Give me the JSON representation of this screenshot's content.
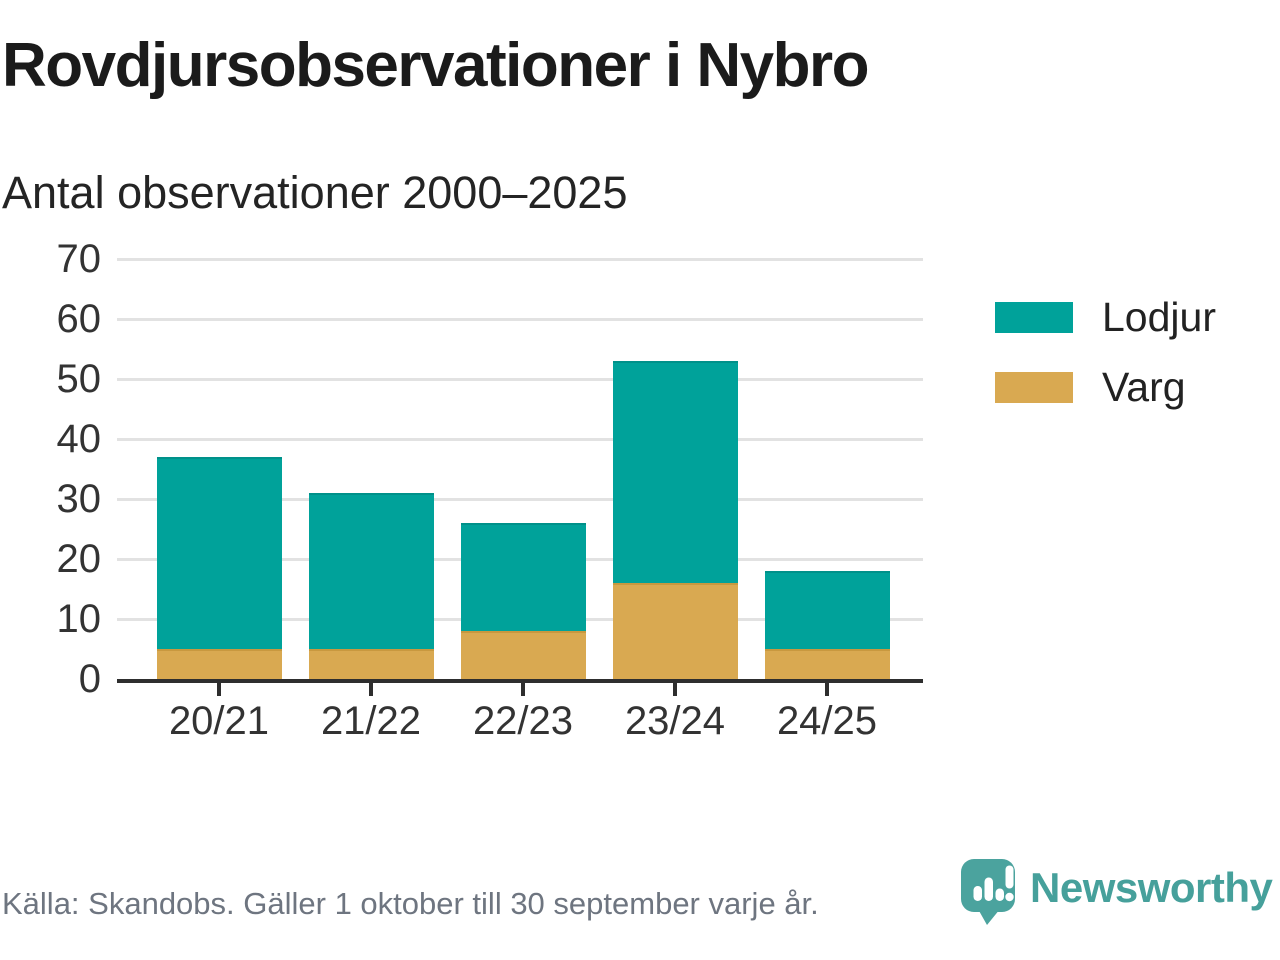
{
  "chart_data": {
    "type": "bar",
    "stacked": true,
    "title": "Rovdjursobservationer i Nybro",
    "subtitle": "Antal observationer 2000–2025",
    "categories": [
      "20/21",
      "21/22",
      "22/23",
      "23/24",
      "24/25"
    ],
    "series": [
      {
        "name": "Varg",
        "color": "#d9a951",
        "edge_color": "#c8983f",
        "values": [
          5,
          5,
          8,
          16,
          5
        ]
      },
      {
        "name": "Lodjur",
        "color": "#00a29a",
        "edge_color": "#00918a",
        "values": [
          32,
          26,
          18,
          37,
          13
        ]
      }
    ],
    "totals": [
      37,
      31,
      26,
      53,
      18
    ],
    "ylim": [
      0,
      70
    ],
    "yticks": [
      0,
      10,
      20,
      30,
      40,
      50,
      60,
      70
    ],
    "grid": true,
    "legend_position": "right"
  },
  "legend": {
    "items": [
      {
        "label": "Lodjur",
        "color": "#00a29a"
      },
      {
        "label": "Varg",
        "color": "#d9a951"
      }
    ]
  },
  "footer": {
    "source": "Källa: Skandobs. Gäller 1 oktober till 30 september varje år.",
    "brand_name": "Newsworthy",
    "logo_icon": "speech-bubble-bar-chart-icon"
  },
  "colors": {
    "accent_teal": "#00a29a",
    "accent_gold": "#d9a951",
    "brand_teal": "#46a09b",
    "gridline": "#e2e2e2",
    "axis": "#2e2e2e",
    "title_text": "#1b1b1b",
    "tick_text": "#333333",
    "source_text": "#6e7580"
  }
}
